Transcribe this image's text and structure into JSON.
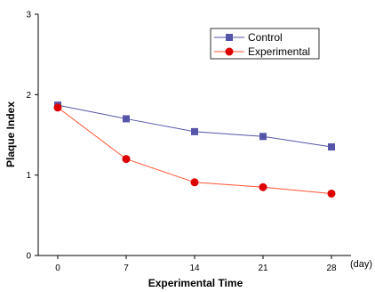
{
  "chart_data": {
    "type": "line",
    "title": "",
    "xlabel": "Experimental Time",
    "ylabel": "Plaque Index",
    "x_unit": "(day)",
    "x": [
      0,
      7,
      14,
      21,
      28
    ],
    "x_ticks": [
      "0",
      "7",
      "14",
      "21",
      "28"
    ],
    "y_ticks": [
      "0",
      "1",
      "2",
      "3"
    ],
    "xlim": [
      -2,
      30
    ],
    "ylim": [
      0,
      3
    ],
    "grid": false,
    "legend_position": "top-right",
    "series": [
      {
        "name": "Control",
        "values": [
          1.87,
          1.7,
          1.54,
          1.48,
          1.35
        ],
        "color": "#5555aa",
        "marker": "square"
      },
      {
        "name": "Experimental",
        "values": [
          1.84,
          1.2,
          0.91,
          0.85,
          0.77
        ],
        "color": "#ff5533",
        "marker_color": "#dd0000",
        "marker": "circle"
      }
    ]
  }
}
